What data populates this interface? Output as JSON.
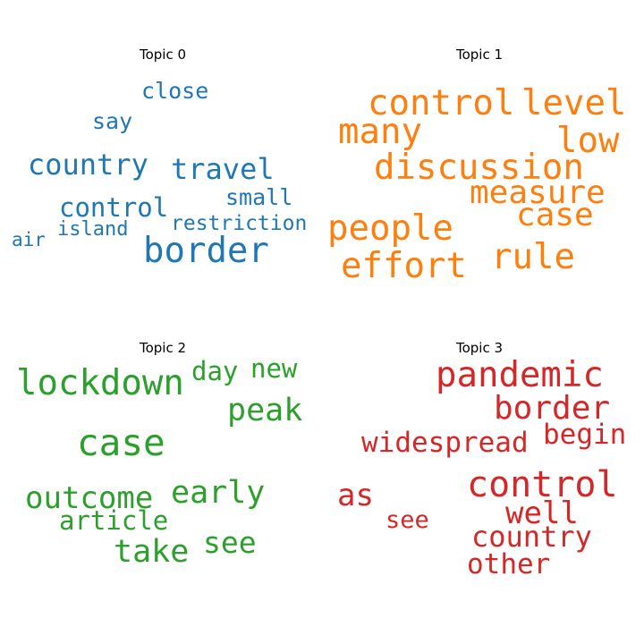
{
  "chart_data": [
    {
      "type": "wordcloud",
      "title": "Topic 0",
      "color": "#1f77b4",
      "words": [
        {
          "text": "close",
          "weight": 0.45
        },
        {
          "text": "say",
          "weight": 0.42
        },
        {
          "text": "country",
          "weight": 0.62
        },
        {
          "text": "travel",
          "weight": 0.62
        },
        {
          "text": "small",
          "weight": 0.45
        },
        {
          "text": "control",
          "weight": 0.55
        },
        {
          "text": "restriction",
          "weight": 0.4
        },
        {
          "text": "island",
          "weight": 0.38
        },
        {
          "text": "air",
          "weight": 0.36
        },
        {
          "text": "border",
          "weight": 0.85
        }
      ]
    },
    {
      "type": "wordcloud",
      "title": "Topic 1",
      "color": "#ff7f0e",
      "words": [
        {
          "text": "control",
          "weight": 0.78
        },
        {
          "text": "level",
          "weight": 0.78
        },
        {
          "text": "many",
          "weight": 0.75
        },
        {
          "text": "low",
          "weight": 0.75
        },
        {
          "text": "discussion",
          "weight": 0.8
        },
        {
          "text": "measure",
          "weight": 0.72
        },
        {
          "text": "case",
          "weight": 0.72
        },
        {
          "text": "people",
          "weight": 0.78
        },
        {
          "text": "rule",
          "weight": 0.75
        },
        {
          "text": "effort",
          "weight": 0.75
        }
      ]
    },
    {
      "type": "wordcloud",
      "title": "Topic 2",
      "color": "#2ca02c",
      "words": [
        {
          "text": "lockdown",
          "weight": 0.82
        },
        {
          "text": "day",
          "weight": 0.6
        },
        {
          "text": "new",
          "weight": 0.6
        },
        {
          "text": "peak",
          "weight": 0.72
        },
        {
          "text": "case",
          "weight": 0.85
        },
        {
          "text": "early",
          "weight": 0.72
        },
        {
          "text": "outcome",
          "weight": 0.68
        },
        {
          "text": "article",
          "weight": 0.6
        },
        {
          "text": "see",
          "weight": 0.68
        },
        {
          "text": "take",
          "weight": 0.7
        }
      ]
    },
    {
      "type": "wordcloud",
      "title": "Topic 3",
      "color": "#d62728",
      "words": [
        {
          "text": "pandemic",
          "weight": 0.8
        },
        {
          "text": "border",
          "weight": 0.72
        },
        {
          "text": "begin",
          "weight": 0.62
        },
        {
          "text": "widespread",
          "weight": 0.62
        },
        {
          "text": "control",
          "weight": 0.8
        },
        {
          "text": "as",
          "weight": 0.68
        },
        {
          "text": "well",
          "weight": 0.68
        },
        {
          "text": "see",
          "weight": 0.5
        },
        {
          "text": "country",
          "weight": 0.62
        },
        {
          "text": "other",
          "weight": 0.62
        }
      ]
    }
  ]
}
